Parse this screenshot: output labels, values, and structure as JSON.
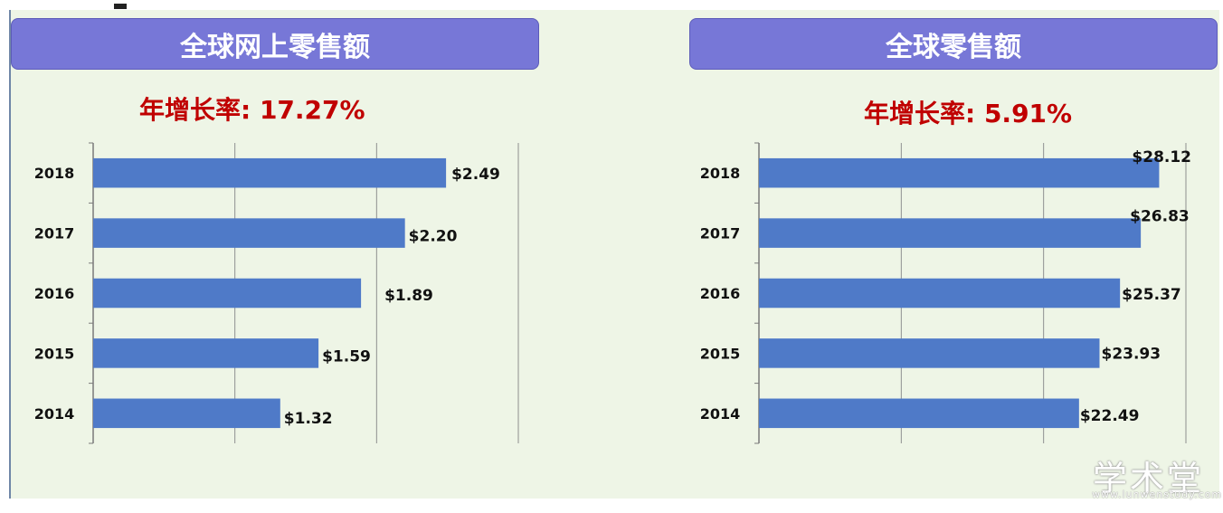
{
  "panels": [
    {
      "header": "全球网上零售额",
      "growth_text": "年增长率: 17.27%"
    },
    {
      "header": "全球零售额",
      "growth_text": "年增长率: 5.91%"
    }
  ],
  "chart_data": [
    {
      "type": "bar",
      "orientation": "horizontal",
      "title": "全球网上零售额",
      "subtitle": "年增长率: 17.27%",
      "categories": [
        "2014",
        "2015",
        "2016",
        "2017",
        "2018"
      ],
      "values": [
        1.32,
        1.59,
        1.89,
        2.2,
        2.49
      ],
      "value_labels": [
        "$1.32",
        "$1.59",
        "$1.89",
        "$2.20",
        "$2.49"
      ],
      "bar_color": "#4f7ac8",
      "grid": true,
      "xlim": [
        0,
        3
      ]
    },
    {
      "type": "bar",
      "orientation": "horizontal",
      "title": "全球零售额",
      "subtitle": "年增长率: 5.91%",
      "categories": [
        "2014",
        "2015",
        "2016",
        "2017",
        "2018"
      ],
      "values": [
        22.49,
        23.93,
        25.37,
        26.83,
        28.12
      ],
      "value_labels": [
        "$22.49",
        "$23.93",
        "$25.37",
        "$26.83",
        "$28.12"
      ],
      "bar_color": "#4f7ac8",
      "grid": true,
      "xlim": [
        0,
        30
      ]
    }
  ],
  "watermark": {
    "text": "学术堂",
    "url_text": "www.lunwenstudy.com"
  }
}
